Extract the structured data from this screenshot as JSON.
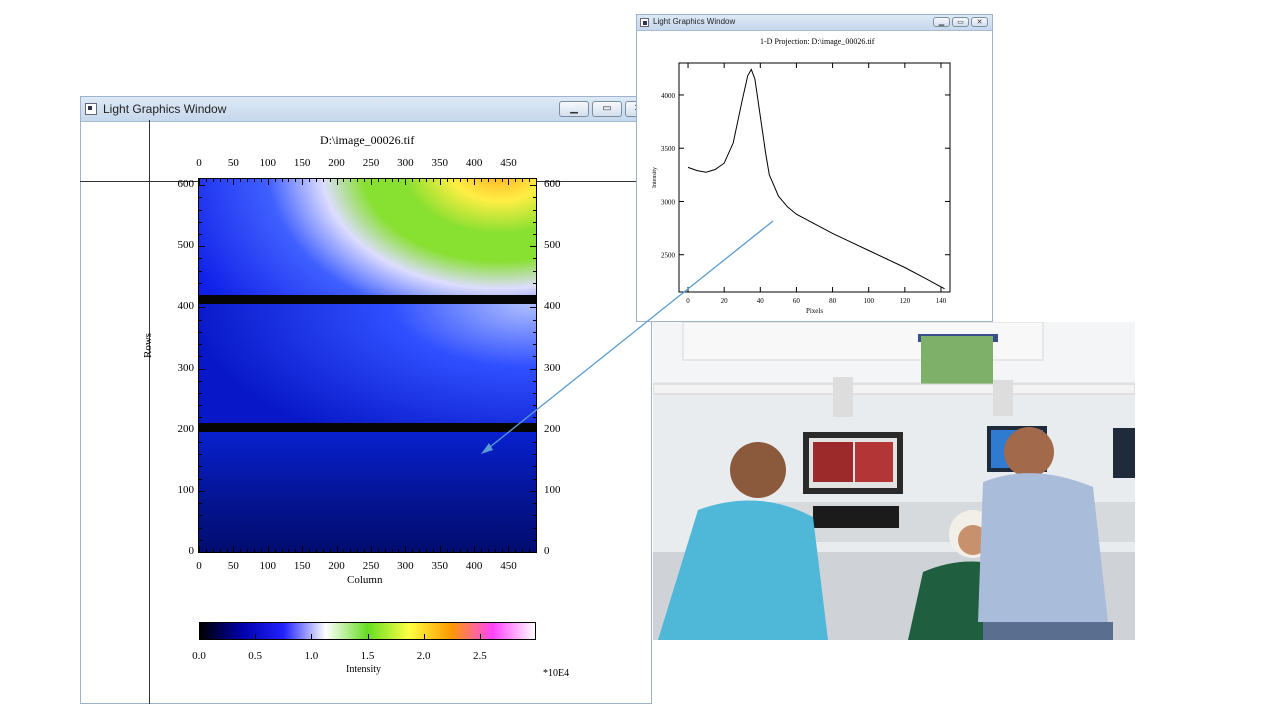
{
  "main_window": {
    "title": "Light Graphics Window",
    "image_title": "D:\\image_00026.tif",
    "x_axis": {
      "label": "Column",
      "ticks": [
        "0",
        "50",
        "100",
        "150",
        "200",
        "250",
        "300",
        "350",
        "400",
        "450"
      ],
      "range": [
        0,
        490
      ]
    },
    "y_axis": {
      "label": "Rows",
      "ticks": [
        "0",
        "100",
        "200",
        "300",
        "400",
        "500",
        "600"
      ],
      "range": [
        0,
        610
      ]
    },
    "dark_bands_rows": [
      415,
      205
    ],
    "colorbar": {
      "label": "Intensity",
      "ticks": [
        "0.0",
        "0.5",
        "1.0",
        "1.5",
        "2.0",
        "2.5"
      ],
      "range": [
        0,
        3.0
      ],
      "multiplier": "*10E4",
      "colors": [
        "#000000",
        "#0000aa",
        "#2222ff",
        "#ffffff",
        "#66dd22",
        "#ffff44",
        "#ff9900",
        "#ff44ff",
        "#ffffff"
      ]
    }
  },
  "projection_window": {
    "title": "Light Graphics Window",
    "plot_title": "1-D Projection: D:\\image_00026.tif",
    "chart_data": {
      "type": "line",
      "title": "1-D Projection: D:\\image_00026.tif",
      "xlabel": "Pixels",
      "ylabel": "Intensity",
      "xlim": [
        -5,
        145
      ],
      "ylim": [
        2150,
        4300
      ],
      "x_ticks": [
        "0",
        "20",
        "40",
        "60",
        "80",
        "100",
        "120",
        "140"
      ],
      "y_ticks": [
        "2500",
        "3000",
        "3500",
        "4000"
      ],
      "x": [
        0,
        5,
        10,
        15,
        20,
        25,
        30,
        33,
        35,
        37,
        40,
        43,
        45,
        48,
        50,
        55,
        60,
        70,
        80,
        90,
        100,
        110,
        120,
        130,
        142
      ],
      "y": [
        3320,
        3290,
        3275,
        3300,
        3360,
        3550,
        3950,
        4180,
        4240,
        4150,
        3800,
        3450,
        3250,
        3130,
        3050,
        2950,
        2880,
        2790,
        2700,
        2620,
        2540,
        2460,
        2380,
        2290,
        2180
      ]
    }
  },
  "photo": {
    "scene": "lab photo"
  }
}
